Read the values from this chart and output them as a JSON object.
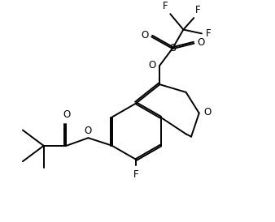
{
  "background_color": "#ffffff",
  "line_color": "#000000",
  "line_width": 1.4,
  "font_size": 8.5,
  "figsize": [
    3.38,
    2.74
  ],
  "dpi": 100,
  "xlim": [
    0,
    10
  ],
  "ylim": [
    0,
    8.1
  ]
}
